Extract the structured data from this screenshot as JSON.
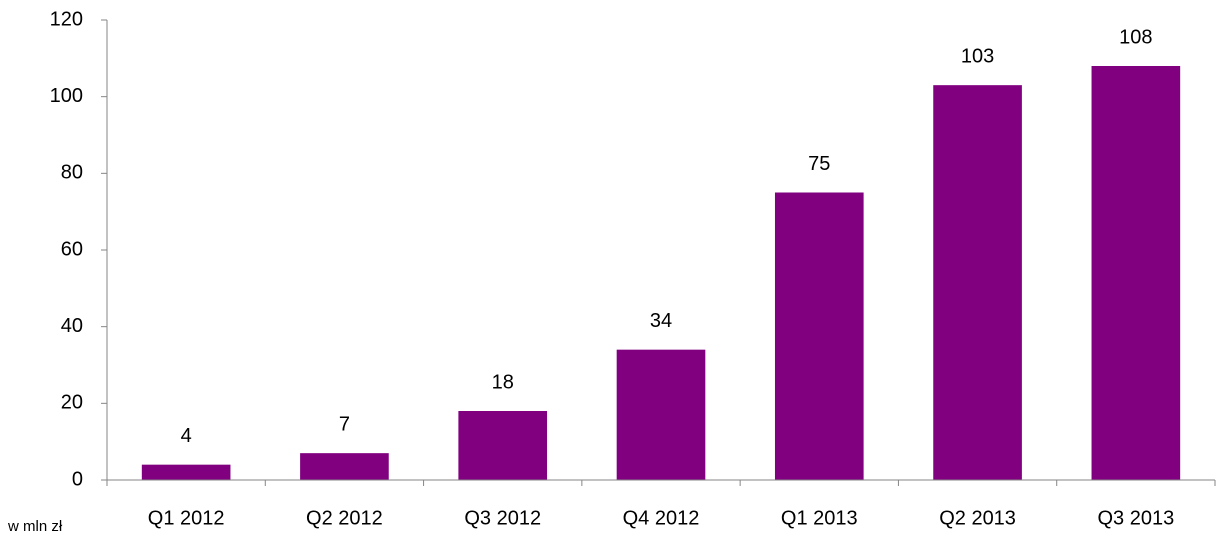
{
  "chart_data": {
    "type": "bar",
    "note": "w mln zł",
    "categories": [
      "Q1 2012",
      "Q2 2012",
      "Q3 2012",
      "Q4 2012",
      "Q1 2013",
      "Q2 2013",
      "Q3 2013"
    ],
    "values": [
      4,
      7,
      18,
      34,
      75,
      103,
      108
    ],
    "color": "#800080",
    "ylim": [
      0,
      120
    ],
    "yticks": [
      0,
      20,
      40,
      60,
      80,
      100,
      120
    ],
    "grid": false,
    "data_labels": true
  }
}
